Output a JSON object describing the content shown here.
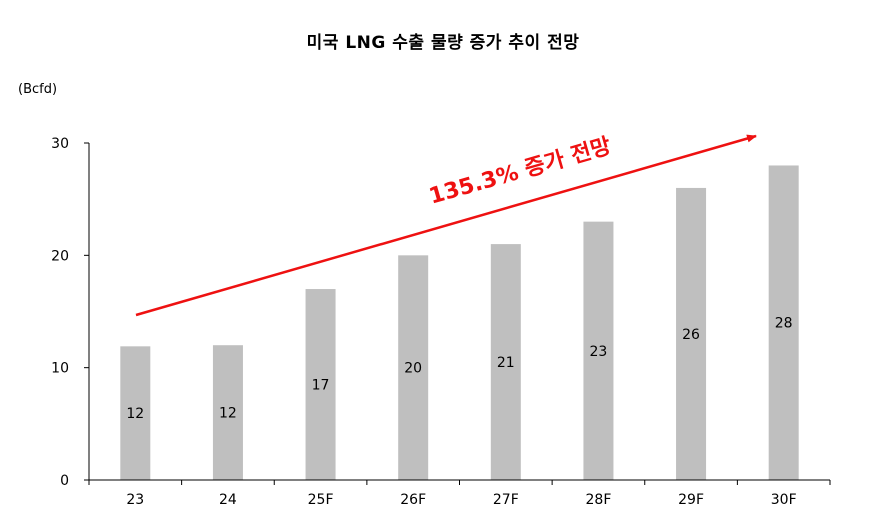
{
  "chart_data": {
    "type": "bar",
    "title": "미국 LNG 수출 물량 증가 추이 전망",
    "unit": "(Bcfd)",
    "categories": [
      "23",
      "24",
      "25F",
      "26F",
      "27F",
      "28F",
      "29F",
      "30F"
    ],
    "values": [
      11.9,
      12,
      17,
      20,
      21,
      23,
      26,
      28
    ],
    "labels": [
      "12",
      "12",
      "17",
      "20",
      "21",
      "23",
      "26",
      "28"
    ],
    "ylim": [
      0,
      30
    ],
    "yticks": [
      0,
      10,
      20,
      30
    ],
    "grid": false,
    "annotation": "135.3% 증가 전망",
    "colors": {
      "bar": "#bfbfbf",
      "arrow": "#ee1111",
      "axis": "#000000"
    }
  }
}
